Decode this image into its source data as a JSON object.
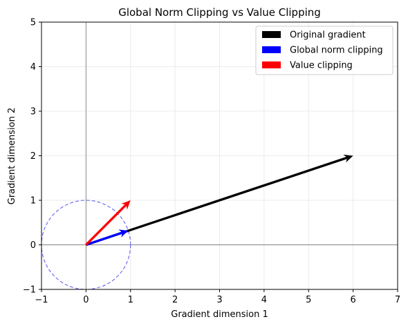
{
  "chart_data": {
    "type": "quiver",
    "title": "Global Norm Clipping vs Value Clipping",
    "xlabel": "Gradient dimension 1",
    "ylabel": "Gradient dimension 2",
    "xlim": [
      -1,
      7
    ],
    "ylim": [
      -1,
      5
    ],
    "xticks": [
      -1,
      0,
      1,
      2,
      3,
      4,
      5,
      6,
      7
    ],
    "yticks": [
      -1,
      0,
      1,
      2,
      3,
      4,
      5
    ],
    "grid": true,
    "legend_position": "top-right",
    "series": [
      {
        "name": "Original gradient",
        "color": "#000000",
        "origin": [
          0,
          0
        ],
        "vector": [
          6,
          2
        ]
      },
      {
        "name": "Global norm clipping",
        "color": "#0000ff",
        "origin": [
          0,
          0
        ],
        "vector": [
          0.95,
          0.32
        ]
      },
      {
        "name": "Value clipping",
        "color": "#ff0000",
        "origin": [
          0,
          0
        ],
        "vector": [
          1,
          1
        ]
      }
    ],
    "reference_lines": [
      {
        "axis": "x",
        "value": 0,
        "color": "#808080"
      },
      {
        "axis": "y",
        "value": 0,
        "color": "#808080"
      }
    ],
    "circle": {
      "center": [
        0,
        0
      ],
      "radius": 1,
      "color": "#5555ee",
      "style": "dashed"
    }
  }
}
